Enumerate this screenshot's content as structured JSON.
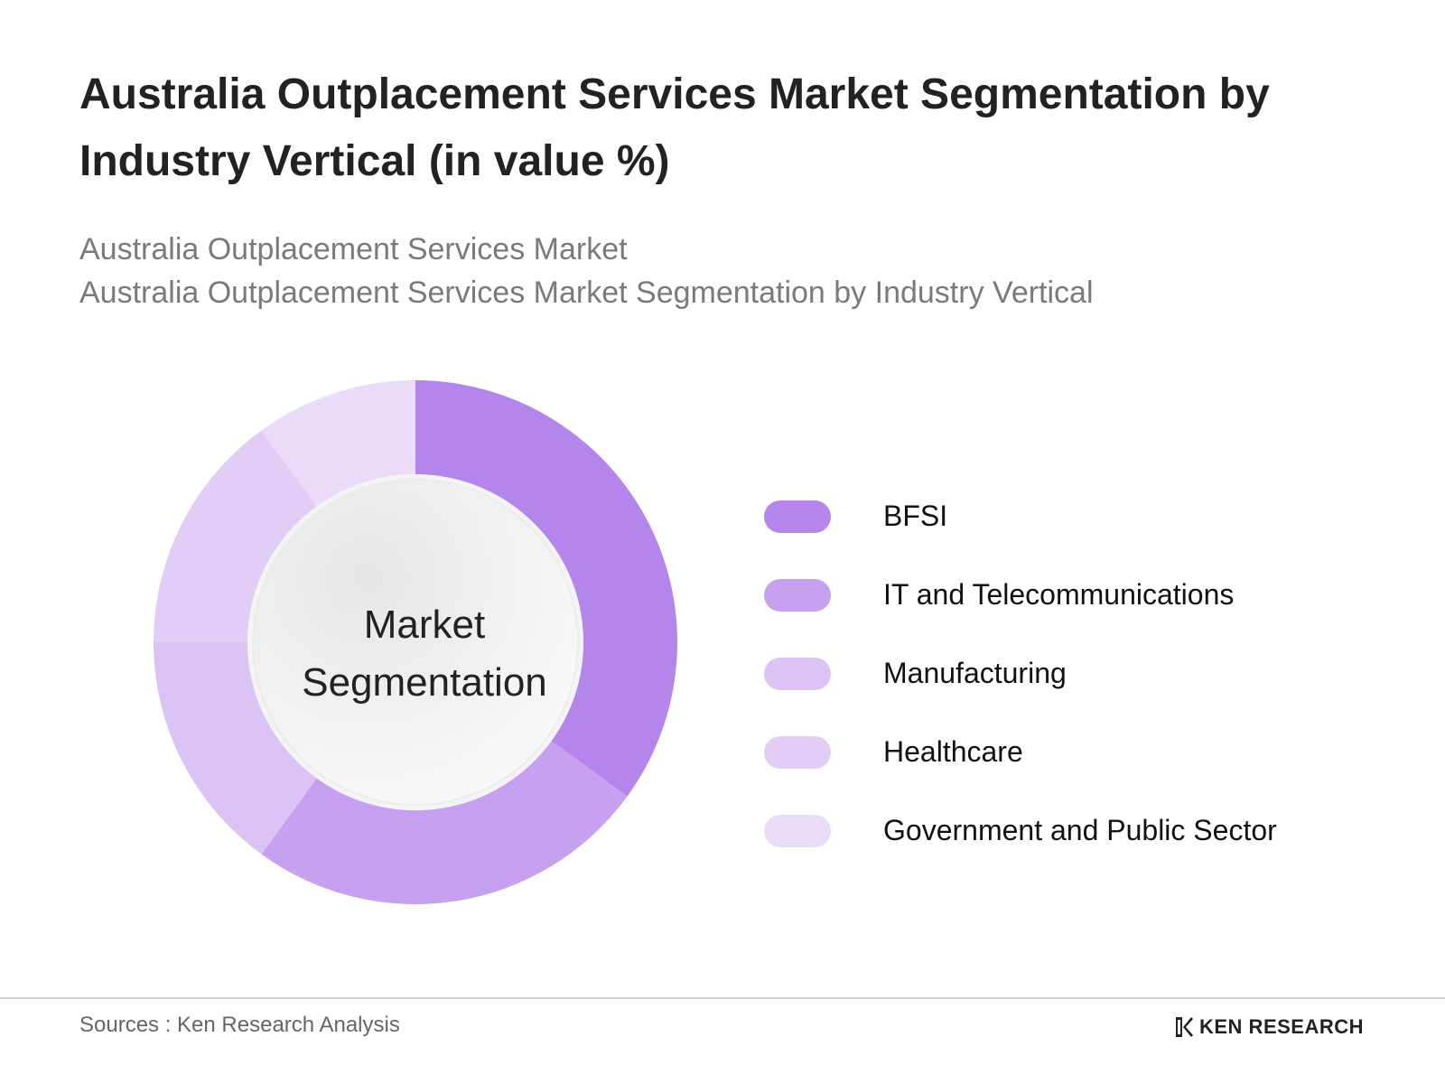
{
  "title": "Australia Outplacement Services Market Segmentation by Industry Vertical (in value %)",
  "subtitle": {
    "line1": "Australia Outplacement Services Market",
    "line2": "Australia Outplacement Services Market Segmentation by  Industry Vertical"
  },
  "center_label": {
    "line1": "Market",
    "line2": "Segmentation"
  },
  "chart_data": {
    "type": "pie",
    "variant": "donut",
    "title": "Australia Outplacement Services Market Segmentation by Industry Vertical (in value %)",
    "categories": [
      "BFSI",
      "IT and Telecommunications",
      "Manufacturing",
      "Healthcare",
      "Government and Public Sector"
    ],
    "values": [
      35,
      25,
      15,
      15,
      10
    ],
    "colors": [
      "#b485eb",
      "#c7a0f0",
      "#dbc3f6",
      "#e2cdf7",
      "#eadcf9"
    ],
    "legend_position": "right"
  },
  "footer": {
    "source": "Sources : Ken Research Analysis",
    "brand": "KEN RESEARCH"
  },
  "brand_icon": "ken-research-logo-icon"
}
